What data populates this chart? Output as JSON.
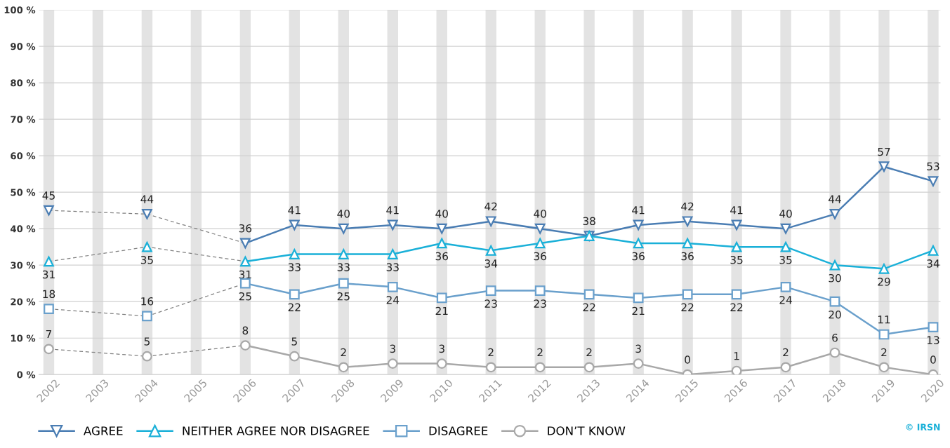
{
  "chart_data": {
    "type": "line",
    "x": [
      2002,
      2003,
      2004,
      2005,
      2006,
      2007,
      2008,
      2009,
      2010,
      2011,
      2012,
      2013,
      2014,
      2015,
      2016,
      2017,
      2018,
      2019,
      2020
    ],
    "xlim": [
      2001.8,
      2020.15
    ],
    "xticks": [
      2002,
      2003,
      2004,
      2005,
      2006,
      2007,
      2008,
      2009,
      2010,
      2011,
      2012,
      2013,
      2014,
      2015,
      2016,
      2017,
      2018,
      2019,
      2020
    ],
    "ylim": [
      0,
      100
    ],
    "yticks": [
      {
        "value": 0,
        "label": "0 %"
      },
      {
        "value": 10,
        "label": "10 %"
      },
      {
        "value": 20,
        "label": "20 %"
      },
      {
        "value": 30,
        "label": "30 %"
      },
      {
        "value": 40,
        "label": "40 %"
      },
      {
        "value": 50,
        "label": "50 %"
      },
      {
        "value": 60,
        "label": "60 %"
      },
      {
        "value": 70,
        "label": "70 %"
      },
      {
        "value": 80,
        "label": "80 %"
      },
      {
        "value": 90,
        "label": "90 %"
      },
      {
        "value": 100,
        "label": "100 %"
      }
    ],
    "grid": "y",
    "legend": "bottom",
    "bands": [
      {
        "axis": "x",
        "from": 2001.89,
        "to": 2002.11,
        "color": "#e3e3e3"
      },
      {
        "axis": "x",
        "from": 2002.89,
        "to": 2003.11,
        "color": "#e3e3e3"
      },
      {
        "axis": "x",
        "from": 2003.89,
        "to": 2004.11,
        "color": "#e3e3e3"
      },
      {
        "axis": "x",
        "from": 2004.89,
        "to": 2005.11,
        "color": "#e3e3e3"
      },
      {
        "axis": "x",
        "from": 2005.89,
        "to": 2006.11,
        "color": "#e3e3e3"
      },
      {
        "axis": "x",
        "from": 2006.89,
        "to": 2007.11,
        "color": "#e3e3e3"
      },
      {
        "axis": "x",
        "from": 2007.89,
        "to": 2008.11,
        "color": "#e3e3e3"
      },
      {
        "axis": "x",
        "from": 2008.89,
        "to": 2009.11,
        "color": "#e3e3e3"
      },
      {
        "axis": "x",
        "from": 2009.89,
        "to": 2010.11,
        "color": "#e3e3e3"
      },
      {
        "axis": "x",
        "from": 2010.89,
        "to": 2011.11,
        "color": "#e3e3e3"
      },
      {
        "axis": "x",
        "from": 2011.89,
        "to": 2012.11,
        "color": "#e3e3e3"
      },
      {
        "axis": "x",
        "from": 2012.89,
        "to": 2013.11,
        "color": "#e3e3e3"
      },
      {
        "axis": "x",
        "from": 2013.89,
        "to": 2014.11,
        "color": "#e3e3e3"
      },
      {
        "axis": "x",
        "from": 2014.89,
        "to": 2015.11,
        "color": "#e3e3e3"
      },
      {
        "axis": "x",
        "from": 2015.89,
        "to": 2016.11,
        "color": "#e3e3e3"
      },
      {
        "axis": "x",
        "from": 2016.89,
        "to": 2017.11,
        "color": "#e3e3e3"
      },
      {
        "axis": "x",
        "from": 2017.89,
        "to": 2018.11,
        "color": "#e3e3e3"
      },
      {
        "axis": "x",
        "from": 2018.89,
        "to": 2019.11,
        "color": "#e3e3e3"
      },
      {
        "axis": "x",
        "from": 2019.89,
        "to": 2020.11,
        "color": "#e3e3e3"
      }
    ],
    "series": [
      {
        "x": [
          2002,
          2004,
          2006
        ],
        "values": [
          45,
          44,
          36
        ],
        "color": "#808080",
        "line_style": "dashed",
        "marker": "none"
      },
      {
        "x": [
          2002,
          2004,
          2006
        ],
        "values": [
          31,
          35,
          31
        ],
        "color": "#808080",
        "line_style": "dashed",
        "marker": "none"
      },
      {
        "x": [
          2002,
          2004,
          2006
        ],
        "values": [
          18,
          16,
          25
        ],
        "color": "#808080",
        "line_style": "dashed",
        "marker": "none"
      },
      {
        "x": [
          2002,
          2004,
          2006
        ],
        "values": [
          7,
          5,
          8
        ],
        "color": "#808080",
        "line_style": "dashed",
        "marker": "none"
      },
      {
        "name": "AGREE",
        "color": "#4a7db3",
        "marker": "triangle_down",
        "line_style": "solid",
        "values": [
          45,
          null,
          44,
          null,
          36,
          41,
          40,
          41,
          40,
          42,
          40,
          38,
          41,
          42,
          41,
          40,
          44,
          57,
          53
        ],
        "value_labels": [
          "45",
          null,
          "44",
          null,
          "36",
          "41",
          "40",
          "41",
          "40",
          "42",
          "40",
          "38",
          "41",
          "42",
          "41",
          "40",
          "44",
          "57",
          "53"
        ]
      },
      {
        "name": "NEITHER AGREE NOR DISAGREE",
        "color": "#1ab0d8",
        "marker": "triangle",
        "line_style": "solid",
        "values": [
          31,
          null,
          35,
          null,
          31,
          33,
          33,
          33,
          36,
          34,
          36,
          38,
          36,
          36,
          35,
          35,
          30,
          29,
          34
        ],
        "value_labels": [
          "31",
          null,
          "35",
          null,
          "31",
          "33",
          "33",
          "33",
          "36",
          "34",
          "36",
          null,
          "36",
          "36",
          "35",
          "35",
          "30",
          "29",
          "34"
        ]
      },
      {
        "name": "DISAGREE",
        "color": "#6aa0cc",
        "marker": "square",
        "line_style": "solid",
        "values": [
          18,
          null,
          16,
          null,
          25,
          22,
          25,
          24,
          21,
          23,
          23,
          22,
          21,
          22,
          22,
          24,
          20,
          11,
          13
        ],
        "value_labels": [
          "18",
          null,
          "16",
          null,
          "25",
          "22",
          "25",
          "24",
          "21",
          "23",
          "23",
          "22",
          "21",
          "22",
          "22",
          "24",
          "20",
          "11",
          "13"
        ]
      },
      {
        "name": "DON’T KNOW",
        "color": "#a8a8a8",
        "marker": "circle",
        "line_style": "solid",
        "values": [
          7,
          null,
          5,
          null,
          8,
          5,
          2,
          3,
          3,
          2,
          2,
          2,
          3,
          0,
          1,
          2,
          6,
          2,
          0
        ],
        "value_labels": [
          "7",
          null,
          "5",
          null,
          "8",
          "5",
          "2",
          "3",
          "3",
          "2",
          "2",
          "2",
          "3",
          "0",
          "1",
          "2",
          "6",
          "2",
          "0"
        ]
      }
    ],
    "annotations": [
      "© IRSN"
    ]
  }
}
